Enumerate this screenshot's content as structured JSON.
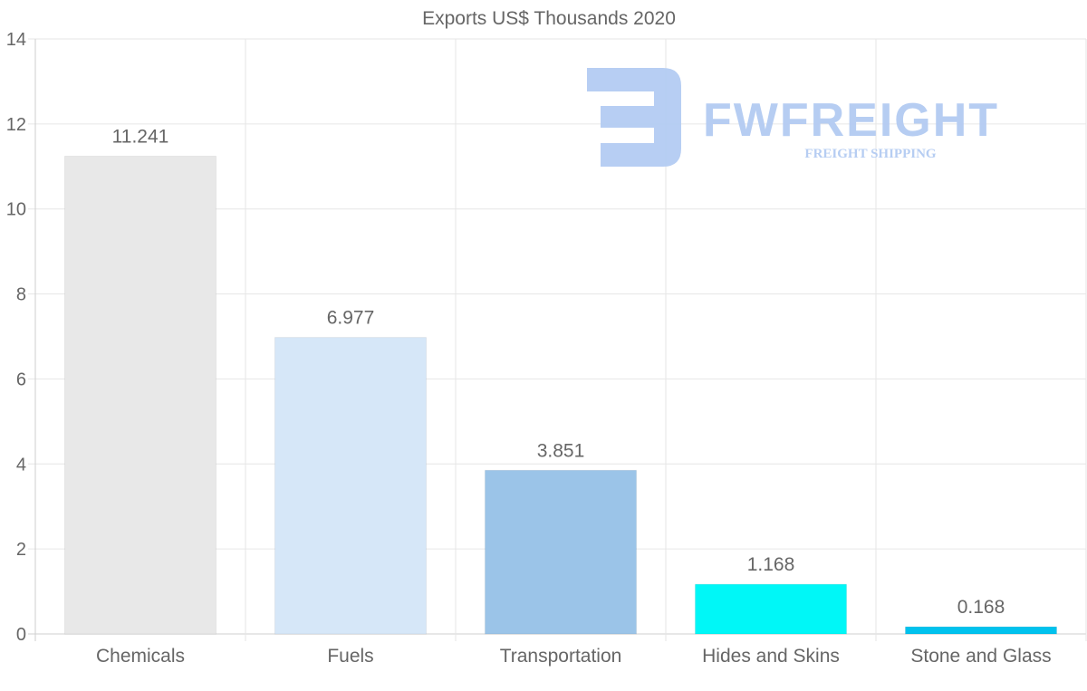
{
  "chart_data": {
    "type": "bar",
    "title": "Exports US$ Thousands 2020",
    "categories": [
      "Chemicals",
      "Fuels",
      "Transportation",
      "Hides and Skins",
      "Stone and Glass"
    ],
    "values": [
      11.241,
      6.977,
      3.851,
      1.168,
      0.168
    ],
    "value_labels": [
      "11.241",
      "6.977",
      "3.851",
      "1.168",
      "0.168"
    ],
    "colors": [
      "#e8e8e8",
      "#d6e7f8",
      "#9bc4e8",
      "#00f7f7",
      "#00c2ee"
    ],
    "ylim": [
      0,
      14
    ],
    "yticks": [
      0,
      2,
      4,
      6,
      8,
      10,
      12,
      14
    ],
    "xlabel": "",
    "ylabel": "",
    "grid": true,
    "legend": "none"
  },
  "watermark": {
    "brand": "FWFREIGHT",
    "tagline": "FREIGHT SHIPPING",
    "color": "#b3cbf2",
    "icon": "fw-logo-icon"
  }
}
